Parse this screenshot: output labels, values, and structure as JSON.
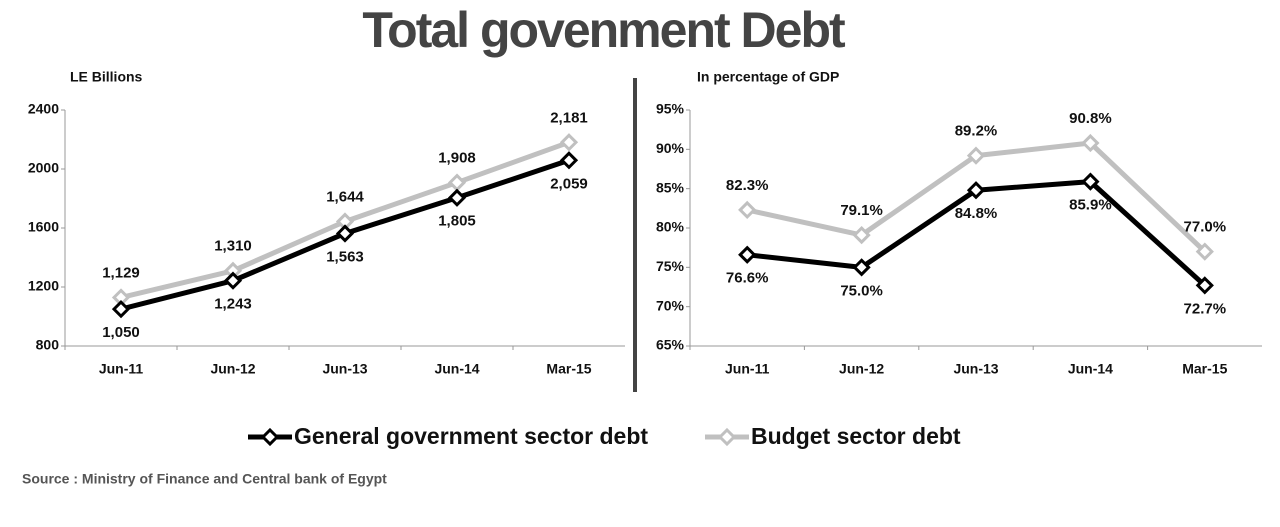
{
  "title": "Total govenment Debt",
  "source": "Source : Ministry of Finance and Central bank of Egypt",
  "chart_data": [
    {
      "type": "line",
      "ylabel": "LE Billions",
      "categories": [
        "Jun-11",
        "Jun-12",
        "Jun-13",
        "Jun-14",
        "Mar-15"
      ],
      "ylim": [
        800,
        2400
      ],
      "yticks": [
        800,
        1200,
        1600,
        2000,
        2400
      ],
      "grid": false,
      "series": [
        {
          "name": "General government sector debt",
          "color": "#000000",
          "values": [
            1050,
            1243,
            1563,
            1805,
            2059
          ],
          "value_labels": [
            "1,050",
            "1,243",
            "1,563",
            "1,805",
            "2,059"
          ]
        },
        {
          "name": "Budget sector debt",
          "color": "#c0c0c0",
          "values": [
            1129,
            1310,
            1644,
            1908,
            2181
          ],
          "value_labels": [
            "1,129",
            "1,310",
            "1,644",
            "1,908",
            "2,181"
          ]
        }
      ]
    },
    {
      "type": "line",
      "ylabel": "In percentage of GDP",
      "categories": [
        "Jun-11",
        "Jun-12",
        "Jun-13",
        "Jun-14",
        "Mar-15"
      ],
      "ylim": [
        65,
        95
      ],
      "yticks": [
        {
          "value": 65,
          "label": "65%"
        },
        {
          "value": 70,
          "label": "70%"
        },
        {
          "value": 75,
          "label": "75%"
        },
        {
          "value": 80,
          "label": "80%"
        },
        {
          "value": 85,
          "label": "85%"
        },
        {
          "value": 90,
          "label": "90%"
        },
        {
          "value": 95,
          "label": "95%"
        }
      ],
      "grid": false,
      "series": [
        {
          "color": "#000000",
          "values": [
            76.6,
            75.0,
            84.8,
            85.9,
            72.7
          ],
          "value_labels": [
            "76.6%",
            "75.0%",
            "84.8%",
            "85.9%",
            "72.7%"
          ]
        },
        {
          "color": "#c0c0c0",
          "values": [
            82.3,
            79.1,
            89.2,
            90.8,
            77.0
          ],
          "value_labels": [
            "82.3%",
            "79.1%",
            "89.2%",
            "90.8%",
            "77.0%"
          ]
        }
      ]
    }
  ]
}
